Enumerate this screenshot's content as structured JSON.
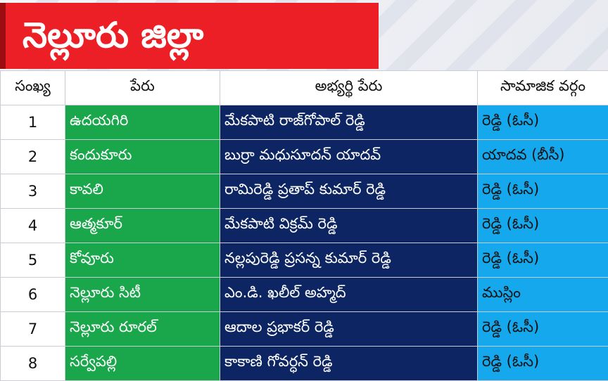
{
  "header": {
    "title": "నెల్లూరు జిల్లా"
  },
  "columns": {
    "number": "సంఖ్య",
    "name": "పేరు",
    "candidate": "అభ్యర్థి పేరు",
    "caste": "సామాజిక వర్గం"
  },
  "rows": [
    {
      "num": "1",
      "name": "ఉదయగిరి",
      "candidate": "మేకపాటి రాజ్‌గోపాల్ రెడ్డి",
      "caste": "రెడ్డి (ఓసీ)"
    },
    {
      "num": "2",
      "name": "కందుకూరు",
      "candidate": "బుర్రా మధుసూదన్ యాదవ్",
      "caste": "యాదవ (బీసీ)"
    },
    {
      "num": "3",
      "name": "కావలి",
      "candidate": "రామిరెడ్డి ప్రతాప్ కుమార్ రెడ్డి",
      "caste": "రెడ్డి (ఓసీ)"
    },
    {
      "num": "4",
      "name": "ఆత్మకూర్",
      "candidate": "మేకపాటి విక్రమ్ రెడ్డి",
      "caste": "రెడ్డి (ఓసీ)"
    },
    {
      "num": "5",
      "name": "కోవూరు",
      "candidate": "నల్లపురెడ్డి ప్రసన్న కుమార్ రెడ్డి",
      "caste": "రెడ్డి (ఓసీ)"
    },
    {
      "num": "6",
      "name": "నెల్లూరు సిటీ",
      "candidate": "ఎం.డి. ఖలీల్ అహ్మద్",
      "caste": "ముస్లిం"
    },
    {
      "num": "7",
      "name": "నెల్లూరు రూరల్",
      "candidate": "ఆదాల ప్రభాకర్ రెడ్డి",
      "caste": "రెడ్డి (ఓసీ)"
    },
    {
      "num": "8",
      "name": "సర్వేపల్లి",
      "candidate": "కాకాణి గోవర్ధన్ రెడ్డి",
      "caste": "రెడ్డి (ఓసీ)"
    }
  ],
  "colors": {
    "banner": "#ec1f27",
    "name_column": "#1aa74b",
    "candidate_column": "#0d2562",
    "caste_column": "#15a8ec"
  }
}
